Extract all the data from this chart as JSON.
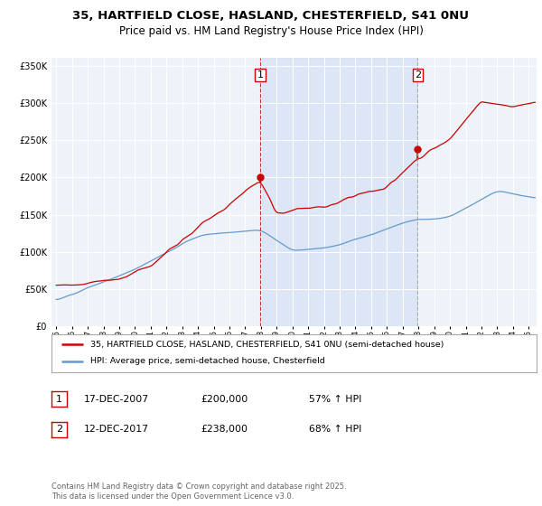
{
  "title_line1": "35, HARTFIELD CLOSE, HASLAND, CHESTERFIELD, S41 0NU",
  "title_line2": "Price paid vs. HM Land Registry's House Price Index (HPI)",
  "title_fontsize": 9.5,
  "subtitle_fontsize": 8.5,
  "bg_color": "#eef2f9",
  "red_line_color": "#cc0000",
  "blue_line_color": "#6699cc",
  "marker1_x": 2007.96,
  "marker1_y": 200000,
  "marker2_x": 2017.95,
  "marker2_y": 238000,
  "vline1_x": 2007.96,
  "vline2_x": 2017.95,
  "shade_color": "#d0dff5",
  "xmin": 1994.7,
  "xmax": 2025.5,
  "ymin": 0,
  "ymax": 360000,
  "yticks": [
    0,
    50000,
    100000,
    150000,
    200000,
    250000,
    300000,
    350000
  ],
  "ytick_labels": [
    "£0",
    "£50K",
    "£100K",
    "£150K",
    "£200K",
    "£250K",
    "£300K",
    "£350K"
  ],
  "legend_label_red": "35, HARTFIELD CLOSE, HASLAND, CHESTERFIELD, S41 0NU (semi-detached house)",
  "legend_label_blue": "HPI: Average price, semi-detached house, Chesterfield",
  "table_row1": [
    "1",
    "17-DEC-2007",
    "£200,000",
    "57% ↑ HPI"
  ],
  "table_row2": [
    "2",
    "12-DEC-2017",
    "£238,000",
    "68% ↑ HPI"
  ],
  "footnote": "Contains HM Land Registry data © Crown copyright and database right 2025.\nThis data is licensed under the Open Government Licence v3.0.",
  "xticks": [
    1995,
    1996,
    1997,
    1998,
    1999,
    2000,
    2001,
    2002,
    2003,
    2004,
    2005,
    2006,
    2007,
    2008,
    2009,
    2010,
    2011,
    2012,
    2013,
    2014,
    2015,
    2016,
    2017,
    2018,
    2019,
    2020,
    2021,
    2022,
    2023,
    2024,
    2025
  ]
}
